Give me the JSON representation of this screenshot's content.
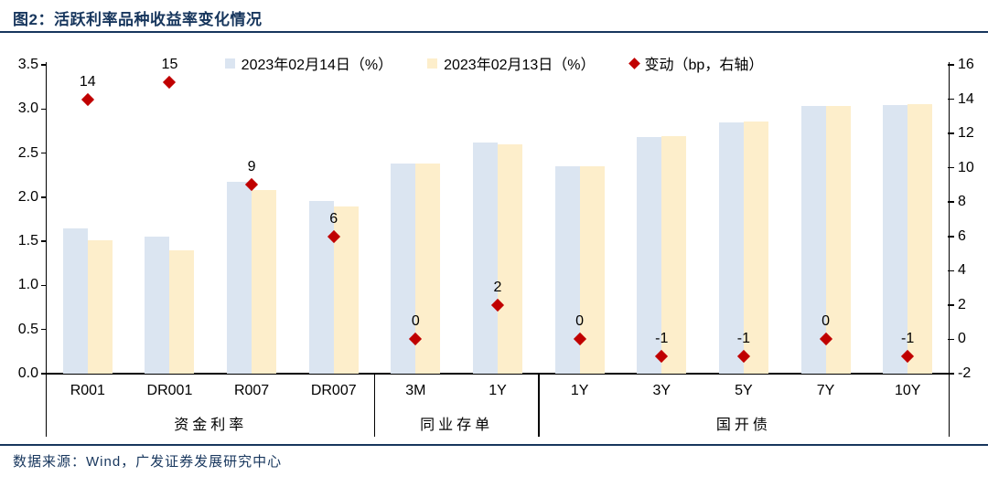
{
  "page": {
    "title": "图2：活跃利率品种收益率变化情况",
    "source": "数据来源：Wind，广发证券发展研究中心"
  },
  "colors": {
    "navy": "#17365d",
    "bar_feb14": "#dbe5f1",
    "bar_feb13": "#fdeecb",
    "change_marker": "#c00000",
    "axis_line": "#000000"
  },
  "chart_data": {
    "type": "bar",
    "title": "活跃利率品种收益率变化情况",
    "legend_position": "top",
    "grid": false,
    "left_axis": {
      "min": 0.0,
      "max": 3.5,
      "tick_labels": [
        "3.5",
        "3.0",
        "2.5",
        "2.0",
        "1.5",
        "1.0",
        "0.5",
        "0.0"
      ]
    },
    "right_axis": {
      "min": -2,
      "max": 16,
      "tick_labels": [
        "16",
        "14",
        "12",
        "10",
        "8",
        "6",
        "4",
        "2",
        "0",
        "-2"
      ]
    },
    "legend": [
      {
        "label": "2023年02月14日（%）",
        "marker": "square",
        "color": "#dbe5f1"
      },
      {
        "label": "2023年02月13日（%）",
        "marker": "square",
        "color": "#fdeecb"
      },
      {
        "label": "变动（bp，右轴）",
        "marker": "diamond",
        "color": "#c00000"
      }
    ],
    "series_names": [
      "2023年02月14日（%）",
      "2023年02月13日（%）",
      "变动（bp，右轴）"
    ],
    "groups": [
      {
        "label": "资金利率",
        "items": [
          {
            "category": "R001",
            "feb14": 1.65,
            "feb13": 1.51,
            "change_bp": 14
          },
          {
            "category": "DR001",
            "feb14": 1.55,
            "feb13": 1.4,
            "change_bp": 15
          },
          {
            "category": "R007",
            "feb14": 2.17,
            "feb13": 2.08,
            "change_bp": 9
          },
          {
            "category": "DR007",
            "feb14": 1.96,
            "feb13": 1.9,
            "change_bp": 6
          }
        ]
      },
      {
        "label": "同业存单",
        "items": [
          {
            "category": "3M",
            "feb14": 2.38,
            "feb13": 2.38,
            "change_bp": 0
          },
          {
            "category": "1Y",
            "feb14": 2.62,
            "feb13": 2.6,
            "change_bp": 2
          }
        ]
      },
      {
        "label": "国开债",
        "items": [
          {
            "category": "1Y",
            "feb14": 2.35,
            "feb13": 2.35,
            "change_bp": 0
          },
          {
            "category": "3Y",
            "feb14": 2.68,
            "feb13": 2.69,
            "change_bp": -1
          },
          {
            "category": "5Y",
            "feb14": 2.85,
            "feb13": 2.86,
            "change_bp": -1
          },
          {
            "category": "7Y",
            "feb14": 3.03,
            "feb13": 3.03,
            "change_bp": 0
          },
          {
            "category": "10Y",
            "feb14": 3.04,
            "feb13": 3.05,
            "change_bp": -1
          }
        ]
      }
    ]
  }
}
